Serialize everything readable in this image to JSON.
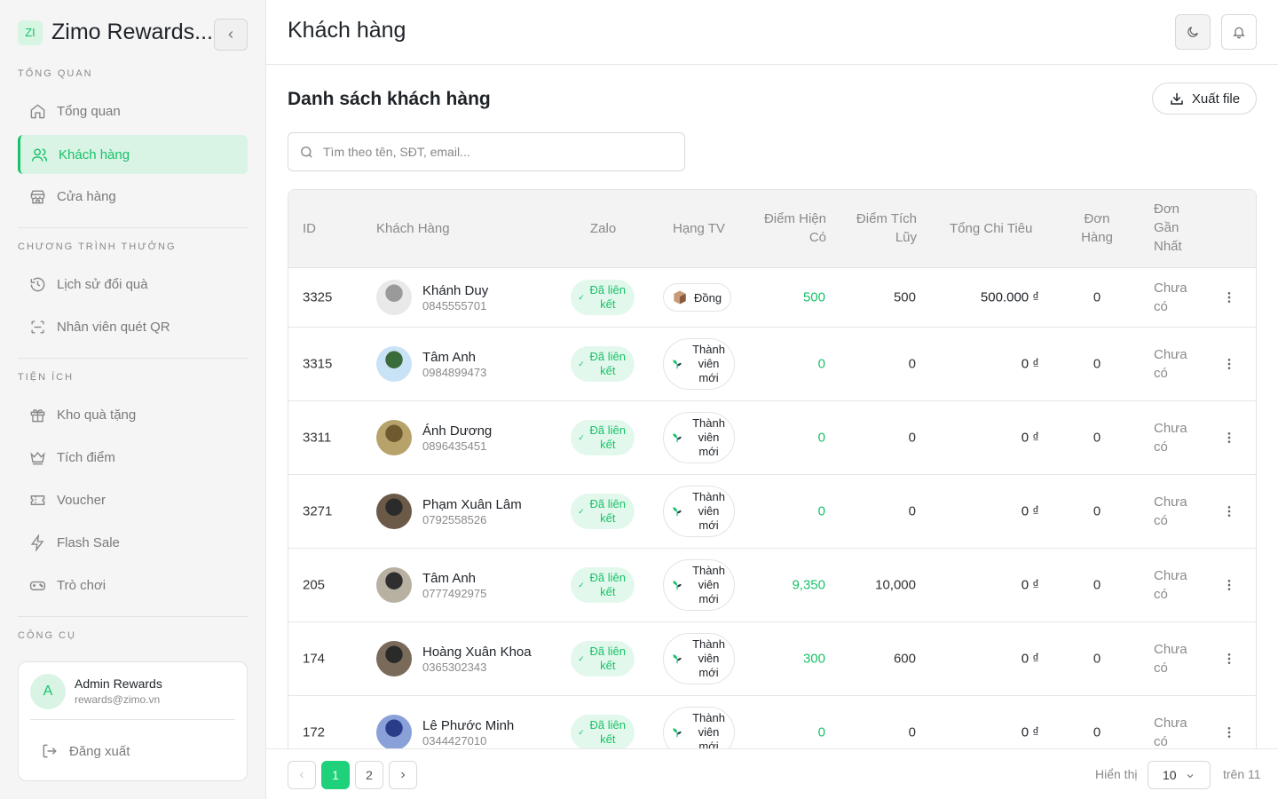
{
  "colors": {
    "accent": "#18c26a",
    "accent_bg": "#d9f3e4",
    "sidebar_bg": "#f5f5f5"
  },
  "brand": {
    "logo": "ZI",
    "name": "Zimo Rewards..."
  },
  "sidebar": {
    "sections": [
      {
        "title": "TỔNG QUAN",
        "items": [
          {
            "label": "Tổng quan",
            "icon": "home-icon"
          },
          {
            "label": "Khách hàng",
            "icon": "users-icon",
            "active": true
          },
          {
            "label": "Cửa hàng",
            "icon": "store-icon"
          }
        ]
      },
      {
        "title": "CHƯƠNG TRÌNH THƯỞNG",
        "items": [
          {
            "label": "Lịch sử đổi quà",
            "icon": "history-icon"
          },
          {
            "label": "Nhân viên quét QR",
            "icon": "scan-icon"
          }
        ]
      },
      {
        "title": "TIỆN ÍCH",
        "items": [
          {
            "label": "Kho quà tặng",
            "icon": "gift-icon"
          },
          {
            "label": "Tích điểm",
            "icon": "crown-icon"
          },
          {
            "label": "Voucher",
            "icon": "ticket-icon"
          },
          {
            "label": "Flash Sale",
            "icon": "lightning-icon"
          },
          {
            "label": "Trò chơi",
            "icon": "gamepad-icon"
          }
        ]
      },
      {
        "title": "CÔNG CỤ",
        "items": []
      }
    ],
    "user": {
      "initial": "A",
      "name": "Admin Rewards",
      "email": "rewards@zimo.vn",
      "logout_label": "Đăng xuất"
    }
  },
  "header": {
    "title": "Khách hàng"
  },
  "main": {
    "list_title": "Danh sách khách hàng",
    "export_label": "Xuất file",
    "search_placeholder": "Tìm theo tên, SĐT, email...",
    "columns": [
      "ID",
      "Khách Hàng",
      "Zalo",
      "Hạng TV",
      "Điểm Hiện Có",
      "Điểm Tích Lũy",
      "Tổng Chi Tiêu",
      "Đơn Hàng",
      "Đơn Gần Nhất"
    ],
    "rows": [
      {
        "id": "3325",
        "name": "Khánh Duy",
        "phone": "0845555701",
        "zalo": "Đã liên kết",
        "rank": "Đồng",
        "points": "500",
        "accumulated": "500",
        "spend": "500.000 ₫",
        "orders": "0",
        "last_order": "Chưa có"
      },
      {
        "id": "3315",
        "name": "Tâm Anh",
        "phone": "0984899473",
        "zalo": "Đã liên kết",
        "rank": "Thành viên mới",
        "points": "0",
        "accumulated": "0",
        "spend": "0 ₫",
        "orders": "0",
        "last_order": "Chưa có"
      },
      {
        "id": "3311",
        "name": "Ánh Dương",
        "phone": "0896435451",
        "zalo": "Đã liên kết",
        "rank": "Thành viên mới",
        "points": "0",
        "accumulated": "0",
        "spend": "0 ₫",
        "orders": "0",
        "last_order": "Chưa có"
      },
      {
        "id": "3271",
        "name": "Phạm Xuân Lâm",
        "phone": "0792558526",
        "zalo": "Đã liên kết",
        "rank": "Thành viên mới",
        "points": "0",
        "accumulated": "0",
        "spend": "0 ₫",
        "orders": "0",
        "last_order": "Chưa có"
      },
      {
        "id": "205",
        "name": "Tâm Anh",
        "phone": "0777492975",
        "zalo": "Đã liên kết",
        "rank": "Thành viên mới",
        "points": "9,350",
        "accumulated": "10,000",
        "spend": "0 ₫",
        "orders": "0",
        "last_order": "Chưa có"
      },
      {
        "id": "174",
        "name": "Hoàng Xuân Khoa",
        "phone": "0365302343",
        "zalo": "Đã liên kết",
        "rank": "Thành viên mới",
        "points": "300",
        "accumulated": "600",
        "spend": "0 ₫",
        "orders": "0",
        "last_order": "Chưa có"
      },
      {
        "id": "172",
        "name": "Lê Phước Minh",
        "phone": "0344427010",
        "zalo": "Đã liên kết",
        "rank": "Thành viên mới",
        "points": "0",
        "accumulated": "0",
        "spend": "0 ₫",
        "orders": "0",
        "last_order": "Chưa có"
      }
    ]
  },
  "pagination": {
    "pages": [
      "1",
      "2"
    ],
    "current": "1",
    "show_label": "Hiển thị",
    "page_size": "10",
    "total_label": "trên 11"
  }
}
